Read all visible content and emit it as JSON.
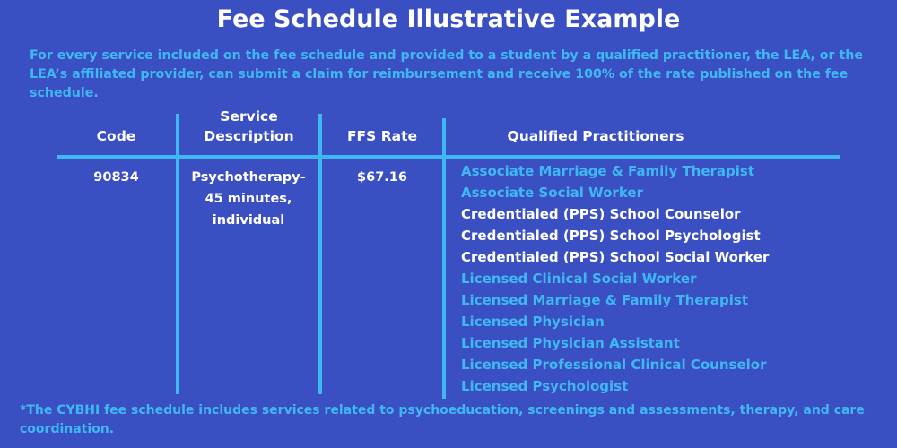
{
  "title": "Fee Schedule Illustrative Example",
  "intro": "For every service included on the fee schedule and provided to a student by a qualified practitioner, the LEA, or the LEA’s affiliated provider, can submit a claim for reimbursement and receive 100% of the rate published on the fee schedule.",
  "table": {
    "headers": [
      "Code",
      "Service Description",
      "FFS Rate",
      "Qualified Practitioners"
    ],
    "row": {
      "code": "90834",
      "description": "Psychotherapy- 45 minutes, individual",
      "rate": "$67.16",
      "practitioners": [
        {
          "name": "Associate Marriage & Family Therapist",
          "highlight": true
        },
        {
          "name": "Associate Social Worker",
          "highlight": true
        },
        {
          "name": "Credentialed (PPS) School Counselor",
          "highlight": false
        },
        {
          "name": "Credentialed (PPS) School Psychologist",
          "highlight": false
        },
        {
          "name": "Credentialed (PPS) School Social Worker",
          "highlight": false
        },
        {
          "name": "Licensed Clinical Social Worker",
          "highlight": true
        },
        {
          "name": "Licensed Marriage & Family Therapist",
          "highlight": true
        },
        {
          "name": "Licensed Physician",
          "highlight": true
        },
        {
          "name": "Licensed Physician Assistant",
          "highlight": true
        },
        {
          "name": "Licensed Professional Clinical Counselor",
          "highlight": true
        },
        {
          "name": "Licensed Psychologist",
          "highlight": true
        }
      ]
    }
  },
  "footnote": "*The CYBHI fee schedule includes services related to psychoeducation, screenings and assessments, therapy, and care coordination.",
  "colors": {
    "background": "#3a4fc1",
    "accent": "#3fb8f2",
    "text": "#ffffff"
  }
}
